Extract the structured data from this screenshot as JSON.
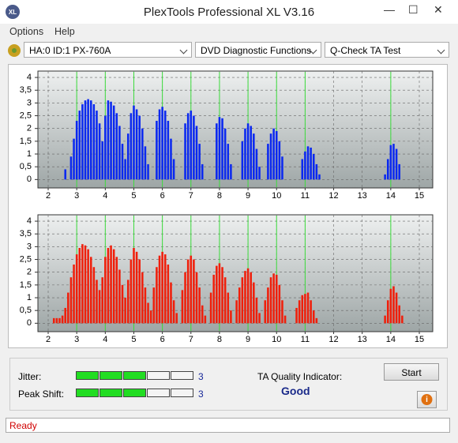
{
  "window_title": "PlexTools Professional XL V3.16",
  "menu": [
    "Options",
    "Help"
  ],
  "toolbar": {
    "drive": "HA:0 ID:1  PX-760A",
    "function": "DVD Diagnostic Functions",
    "test": "Q-Check TA Test"
  },
  "chart_data": [
    {
      "type": "bar",
      "color": "#0a28f0",
      "marker_color": "#3cdc3c",
      "grid": true,
      "xlim": [
        1.64,
        15.47
      ],
      "ylim": [
        -0.33,
        4.25
      ],
      "xticks": [
        2,
        3,
        4,
        5,
        6,
        7,
        8,
        9,
        10,
        11,
        12,
        13,
        14,
        15
      ],
      "yticks": [
        0,
        {
          "value": 0.5,
          "label": "0,5"
        },
        1,
        {
          "value": 1.5,
          "label": "1,5"
        },
        2,
        {
          "value": 2.5,
          "label": "2,5"
        },
        3,
        {
          "value": 3.5,
          "label": "3,5"
        },
        4
      ],
      "markers": [
        3,
        4,
        5,
        6,
        7,
        8,
        9,
        10,
        11,
        14
      ],
      "x": [
        2.6,
        2.8,
        2.9,
        3.0,
        3.1,
        3.2,
        3.3,
        3.4,
        3.5,
        3.6,
        3.7,
        3.8,
        3.9,
        4.0,
        4.1,
        4.2,
        4.3,
        4.4,
        4.5,
        4.6,
        4.7,
        4.8,
        4.9,
        5.0,
        5.1,
        5.2,
        5.3,
        5.4,
        5.5,
        5.8,
        5.9,
        6.0,
        6.1,
        6.2,
        6.3,
        6.4,
        6.8,
        6.9,
        7.0,
        7.1,
        7.2,
        7.3,
        7.4,
        7.9,
        8.0,
        8.1,
        8.2,
        8.3,
        8.4,
        8.8,
        8.9,
        9.0,
        9.1,
        9.2,
        9.3,
        9.4,
        9.7,
        9.8,
        9.9,
        10.0,
        10.1,
        10.2,
        10.9,
        11.0,
        11.1,
        11.2,
        11.3,
        11.4,
        11.5,
        13.8,
        13.9,
        14.0,
        14.1,
        14.2,
        14.3
      ],
      "values": [
        0.4,
        0.9,
        1.6,
        2.3,
        2.7,
        2.95,
        3.1,
        3.15,
        3.1,
        2.95,
        2.7,
        2.2,
        1.5,
        2.5,
        3.1,
        3.05,
        2.9,
        2.6,
        2.1,
        1.4,
        0.8,
        1.8,
        2.6,
        2.9,
        2.75,
        2.5,
        2.0,
        1.3,
        0.6,
        2.3,
        2.75,
        2.85,
        2.7,
        2.3,
        1.6,
        0.8,
        2.2,
        2.6,
        2.7,
        2.5,
        2.1,
        1.4,
        0.6,
        2.2,
        2.45,
        2.4,
        2.0,
        1.4,
        0.6,
        1.5,
        2.0,
        2.2,
        2.1,
        1.8,
        1.2,
        0.5,
        1.4,
        1.8,
        2.0,
        1.9,
        1.5,
        0.9,
        0.8,
        1.1,
        1.3,
        1.25,
        1.0,
        0.6,
        0.2,
        0.2,
        0.8,
        1.35,
        1.4,
        1.2,
        0.6
      ]
    },
    {
      "type": "bar",
      "color": "#f01e0a",
      "marker_color": "#3cdc3c",
      "grid": true,
      "xlim": [
        1.64,
        15.47
      ],
      "ylim": [
        -0.33,
        4.25
      ],
      "xticks": [
        2,
        3,
        4,
        5,
        6,
        7,
        8,
        9,
        10,
        11,
        12,
        13,
        14,
        15
      ],
      "yticks": [
        0,
        {
          "value": 0.5,
          "label": "0,5"
        },
        1,
        {
          "value": 1.5,
          "label": "1,5"
        },
        2,
        {
          "value": 2.5,
          "label": "2,5"
        },
        3,
        {
          "value": 3.5,
          "label": "3,5"
        },
        4
      ],
      "markers": [
        3,
        4,
        5,
        6,
        7,
        8,
        9,
        10,
        11,
        14
      ],
      "x": [
        2.2,
        2.3,
        2.4,
        2.5,
        2.6,
        2.7,
        2.8,
        2.9,
        3.0,
        3.1,
        3.2,
        3.3,
        3.4,
        3.5,
        3.6,
        3.7,
        3.8,
        3.9,
        4.0,
        4.1,
        4.2,
        4.3,
        4.4,
        4.5,
        4.6,
        4.7,
        4.8,
        4.9,
        5.0,
        5.1,
        5.2,
        5.3,
        5.4,
        5.5,
        5.6,
        5.7,
        5.8,
        5.9,
        6.0,
        6.1,
        6.2,
        6.3,
        6.4,
        6.5,
        6.7,
        6.8,
        6.9,
        7.0,
        7.1,
        7.2,
        7.3,
        7.4,
        7.5,
        7.7,
        7.8,
        7.9,
        8.0,
        8.1,
        8.2,
        8.3,
        8.4,
        8.6,
        8.7,
        8.8,
        8.9,
        9.0,
        9.1,
        9.2,
        9.3,
        9.4,
        9.6,
        9.7,
        9.8,
        9.9,
        10.0,
        10.1,
        10.2,
        10.3,
        10.7,
        10.8,
        10.9,
        11.0,
        11.1,
        11.2,
        11.3,
        11.4,
        13.8,
        13.9,
        14.0,
        14.1,
        14.2,
        14.3,
        14.4
      ],
      "values": [
        0.2,
        0.2,
        0.2,
        0.3,
        0.6,
        1.2,
        1.8,
        2.3,
        2.7,
        2.95,
        3.1,
        3.05,
        2.9,
        2.6,
        2.2,
        1.7,
        1.3,
        1.8,
        2.6,
        2.95,
        3.05,
        2.9,
        2.6,
        2.1,
        1.5,
        1.0,
        1.7,
        2.5,
        2.95,
        2.8,
        2.5,
        2.0,
        1.4,
        0.8,
        0.5,
        1.4,
        2.2,
        2.65,
        2.8,
        2.7,
        2.3,
        1.6,
        0.9,
        0.4,
        1.3,
        2.0,
        2.5,
        2.65,
        2.5,
        2.0,
        1.4,
        0.7,
        0.3,
        1.2,
        1.9,
        2.25,
        2.35,
        2.2,
        1.8,
        1.2,
        0.5,
        0.9,
        1.4,
        1.8,
        2.05,
        2.15,
        2.0,
        1.6,
        1.0,
        0.4,
        0.9,
        1.4,
        1.8,
        1.95,
        1.9,
        1.5,
        0.9,
        0.3,
        0.6,
        0.9,
        1.1,
        1.15,
        1.2,
        0.9,
        0.5,
        0.2,
        0.3,
        0.9,
        1.35,
        1.45,
        1.2,
        0.7,
        0.3
      ]
    }
  ],
  "jitter": {
    "label": "Jitter:",
    "value": 3
  },
  "peak_shift": {
    "label": "Peak Shift:",
    "value": 3
  },
  "ta_quality": {
    "label": "TA Quality Indicator:",
    "result": "Good"
  },
  "start_button": "Start",
  "status": "Ready"
}
